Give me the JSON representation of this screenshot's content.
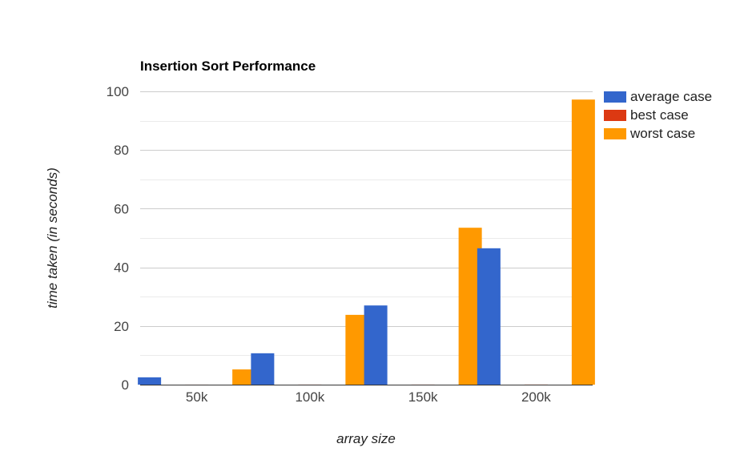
{
  "chart_data": {
    "type": "bar",
    "title": "Insertion Sort Performance",
    "xlabel": "array size",
    "ylabel": "time taken (in seconds)",
    "categories": [
      "50k",
      "100k",
      "150k",
      "200k"
    ],
    "ylim": [
      0,
      100
    ],
    "yticks": [
      0,
      20,
      40,
      60,
      80,
      100
    ],
    "grid": true,
    "legend_position": "right",
    "series": [
      {
        "name": "average case",
        "color": "#3366cc",
        "values": [
          2.5,
          10.7,
          27.0,
          46.5
        ]
      },
      {
        "name": "best case",
        "color": "#dc3912",
        "values": [
          0.01,
          0.02,
          0.02,
          0.03
        ]
      },
      {
        "name": "worst case",
        "color": "#ff9900",
        "values": [
          5.2,
          23.8,
          53.5,
          97.2
        ]
      }
    ]
  }
}
